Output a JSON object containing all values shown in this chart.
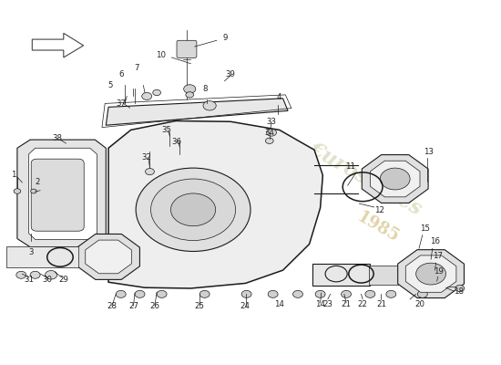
{
  "background_color": "#ffffff",
  "fig_width": 5.5,
  "fig_height": 4.0,
  "dpi": 100,
  "line_color": "#1a1a1a",
  "label_color": "#222222",
  "watermark_color_text": "#c8c8a0",
  "watermark_color_year": "#c8b060"
}
